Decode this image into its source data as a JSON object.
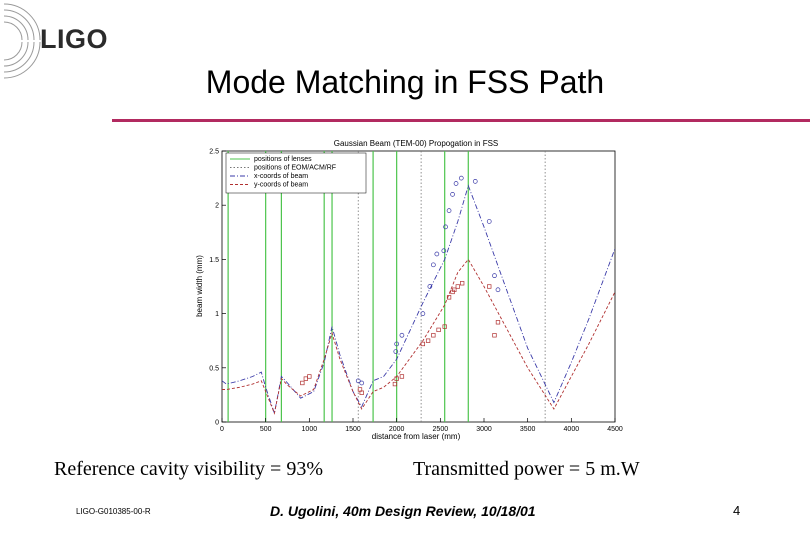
{
  "slide": {
    "logo": "LIGO",
    "title": "Mode Matching in FSS Path",
    "caption_left": "Reference cavity visibility = 93%",
    "caption_right": "Transmitted power = 5 m.W",
    "footer_left": "LIGO-G010385-00-R",
    "footer_center": "D. Ugolini, 40m Design Review, 10/18/01",
    "page_number": "4",
    "accent_color": "#b22a60"
  },
  "chart_data": {
    "type": "line",
    "title": "Gaussian Beam (TEM-00) Propogation in FSS",
    "xlabel": "distance from laser (mm)",
    "ylabel": "beam width (mm)",
    "xlim": [
      0,
      4500
    ],
    "ylim": [
      0,
      2.5
    ],
    "xticks": [
      "0",
      "500",
      "1000",
      "1500",
      "2000",
      "2500",
      "3000",
      "3500",
      "4000",
      "4500"
    ],
    "yticks": [
      "0",
      "0.5",
      "1",
      "1.5",
      "2",
      "2.5"
    ],
    "legend_position": "top-left",
    "lens_positions": [
      70,
      500,
      680,
      1170,
      1260,
      1730,
      2000,
      2550,
      2820
    ],
    "eom_positions": [
      1560,
      2280,
      3700
    ],
    "series": [
      {
        "name": "x-coords of beam",
        "color": "#3a3aa8",
        "x": [
          0,
          50,
          200,
          350,
          450,
          500,
          600,
          680,
          750,
          900,
          1050,
          1170,
          1260,
          1350,
          1500,
          1600,
          1730,
          1850,
          2000,
          2300,
          2550,
          2700,
          2820,
          3000,
          3200,
          3500,
          3800,
          4000,
          4200,
          4500
        ],
        "y": [
          0.38,
          0.35,
          0.38,
          0.42,
          0.46,
          0.32,
          0.08,
          0.42,
          0.36,
          0.22,
          0.28,
          0.55,
          0.88,
          0.62,
          0.28,
          0.14,
          0.38,
          0.42,
          0.58,
          1.1,
          1.5,
          1.85,
          2.18,
          1.8,
          1.35,
          0.68,
          0.18,
          0.55,
          0.95,
          1.6
        ]
      },
      {
        "name": "y-coords of beam",
        "color": "#b03030",
        "x": [
          0,
          50,
          200,
          350,
          450,
          500,
          600,
          680,
          750,
          900,
          1050,
          1170,
          1260,
          1350,
          1500,
          1600,
          1730,
          1850,
          2000,
          2300,
          2550,
          2700,
          2820,
          3000,
          3200,
          3500,
          3800,
          4000,
          4200,
          4500
        ],
        "y": [
          0.3,
          0.3,
          0.32,
          0.35,
          0.38,
          0.28,
          0.08,
          0.4,
          0.34,
          0.24,
          0.3,
          0.58,
          0.82,
          0.58,
          0.28,
          0.12,
          0.28,
          0.32,
          0.42,
          0.75,
          1.08,
          1.38,
          1.5,
          1.25,
          0.95,
          0.5,
          0.12,
          0.42,
          0.72,
          1.2
        ]
      }
    ],
    "markers": {
      "x_points": {
        "color": "#3a3aa8",
        "x": [
          1560,
          1600,
          1990,
          2000,
          2060,
          2300,
          2380,
          2420,
          2460,
          2540,
          2560,
          2600,
          2640,
          2680,
          2740,
          2900,
          3060,
          3120,
          3160
        ],
        "y": [
          0.38,
          0.36,
          0.65,
          0.72,
          0.8,
          1.0,
          1.25,
          1.45,
          1.55,
          1.58,
          1.8,
          1.95,
          2.1,
          2.2,
          2.25,
          2.22,
          1.85,
          1.35,
          1.22
        ]
      },
      "y_points": {
        "color": "#b03030",
        "x": [
          920,
          960,
          1000,
          1580,
          1600,
          1980,
          2000,
          2060,
          2300,
          2360,
          2420,
          2480,
          2550,
          2600,
          2640,
          2660,
          2700,
          2750,
          3060,
          3120,
          3160
        ],
        "y": [
          0.36,
          0.4,
          0.42,
          0.3,
          0.27,
          0.35,
          0.4,
          0.42,
          0.72,
          0.75,
          0.8,
          0.85,
          0.88,
          1.15,
          1.2,
          1.22,
          1.25,
          1.28,
          1.25,
          0.8,
          0.92
        ]
      }
    }
  }
}
